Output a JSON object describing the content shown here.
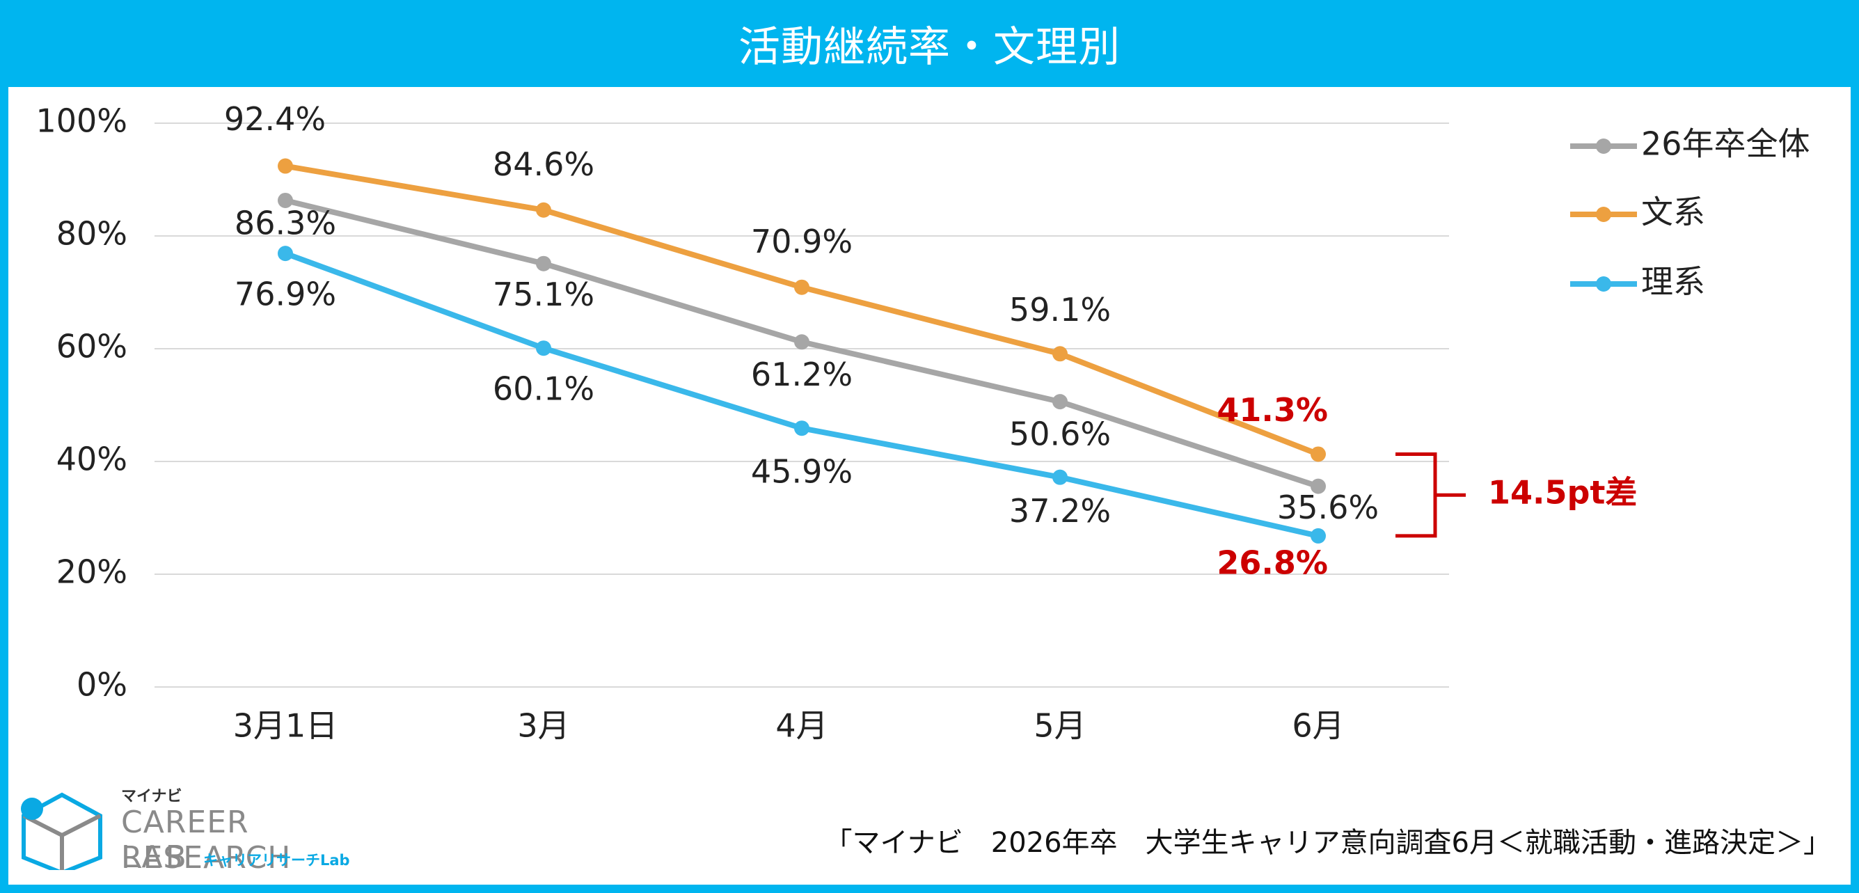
{
  "title": "活動継続率・文理別",
  "colors": {
    "frame": "#00b5ef",
    "all": "#a6a6a6",
    "bunkei": "#eda040",
    "rikei": "#3ab8ea",
    "highlight": "#cc0000",
    "grid": "#d9d9d9",
    "logo_blue": "#0aa9e3",
    "logo_gray": "#8a8a8a"
  },
  "chart_data": {
    "type": "line",
    "categories": [
      "3月1日",
      "3月",
      "4月",
      "5月",
      "6月"
    ],
    "ylim": [
      0,
      100
    ],
    "yticks": [
      "0%",
      "20%",
      "40%",
      "60%",
      "80%",
      "100%"
    ],
    "grid": true,
    "legend_position": "top-right",
    "series": [
      {
        "name": "26年卒全体",
        "color": "#a6a6a6",
        "values": [
          86.3,
          75.1,
          61.2,
          50.6,
          35.6
        ],
        "labels": [
          "86.3%",
          "75.1%",
          "61.2%",
          "50.6%",
          "35.6%"
        ]
      },
      {
        "name": "文系",
        "color": "#eda040",
        "values": [
          92.4,
          84.6,
          70.9,
          59.1,
          41.3
        ],
        "labels": [
          "92.4%",
          "84.6%",
          "70.9%",
          "59.1%",
          "41.3%"
        ]
      },
      {
        "name": "理系",
        "color": "#3ab8ea",
        "values": [
          76.9,
          60.1,
          45.9,
          37.2,
          26.8
        ],
        "labels": [
          "76.9%",
          "60.1%",
          "45.9%",
          "37.2%",
          "26.8%"
        ]
      }
    ],
    "annotation": {
      "text": "14.5pt差",
      "from_value": 41.3,
      "to_value": 26.8
    }
  },
  "logo": {
    "top": "マイナビ",
    "line1": "CAREER RESEARCH",
    "line2": "LAB",
    "sub": "キャリアリサーチLab"
  },
  "source": "「マイナビ　2026年卒　大学生キャリア意向調査6月＜就職活動・進路決定＞」"
}
